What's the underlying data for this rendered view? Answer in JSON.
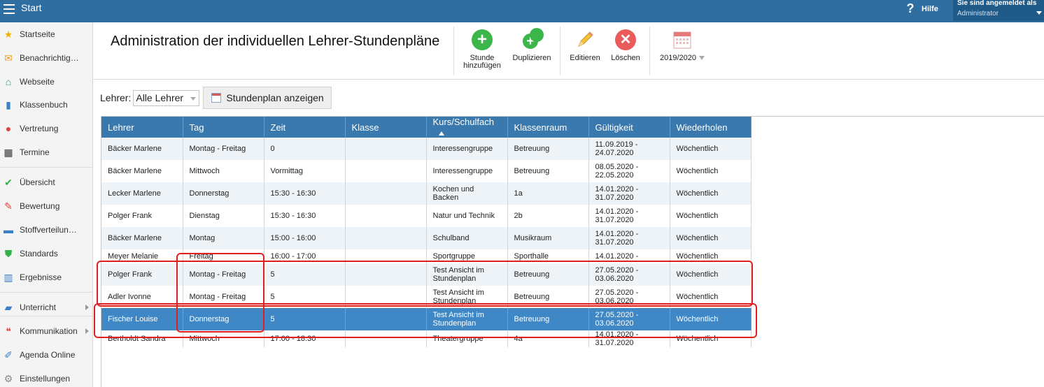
{
  "topbar": {
    "title": "Start",
    "help_label": "Hilfe",
    "user_line1": "Sie sind angemeldet als",
    "user_line2": "Administrator"
  },
  "sidebar": {
    "items": [
      {
        "label": "Startseite",
        "icon": "star-icon",
        "color": "#f0b400"
      },
      {
        "label": "Benachrichtigungen",
        "icon": "envelope-icon",
        "color": "#f29a1d"
      },
      {
        "label": "Webseite",
        "icon": "house-icon",
        "color": "#2e9a63"
      },
      {
        "label": "Klassenbuch",
        "icon": "book-icon",
        "color": "#3b7fc4"
      },
      {
        "label": "Vertretung",
        "icon": "person-icon",
        "color": "#e0453a"
      },
      {
        "label": "Termine",
        "icon": "calendar-icon",
        "color": "#333333"
      },
      {
        "label": "Übersicht",
        "icon": "check-circle-icon",
        "color": "#31b24a"
      },
      {
        "label": "Bewertung",
        "icon": "rating-icon",
        "color": "#e0453a"
      },
      {
        "label": "Stoffverteilungsplan",
        "icon": "briefcase-icon",
        "color": "#3b7fc4"
      },
      {
        "label": "Standards",
        "icon": "shield-check-icon",
        "color": "#31b24a"
      },
      {
        "label": "Ergebnisse",
        "icon": "bar-chart-icon",
        "color": "#3b7fc4"
      },
      {
        "label": "Unterricht",
        "icon": "open-book-icon",
        "color": "#3b7fc4"
      },
      {
        "label": "Kommunikation",
        "icon": "chat-icon",
        "color": "#e0453a"
      },
      {
        "label": "Agenda Online",
        "icon": "pen-icon",
        "color": "#3b7fc4"
      },
      {
        "label": "Einstellungen",
        "icon": "gear-icon",
        "color": "#888888"
      }
    ]
  },
  "header": {
    "title": "Administration der individuellen Lehrer-Stundenpläne",
    "toolbar": {
      "add_line1": "Stunde",
      "add_line2": "hinzufügen",
      "duplicate": "Duplizieren",
      "edit": "Editieren",
      "delete": "Löschen",
      "year": "2019/2020"
    }
  },
  "filter": {
    "label": "Lehrer:",
    "selected": "Alle Lehrer",
    "show_button": "Stundenplan anzeigen"
  },
  "table": {
    "columns": [
      "Lehrer",
      "Tag",
      "Zeit",
      "Klasse",
      "Kurs/Schulfach",
      "Klassenraum",
      "Gültigkeit",
      "Wiederholen"
    ],
    "rows": [
      {
        "lehrer": "Bäcker Marlene",
        "tag": "Montag - Freitag",
        "zeit": "0",
        "klasse": "",
        "kurs": "Interessengruppe",
        "raum": "Betreuung",
        "gueltig_von": "11.09.2019 -",
        "gueltig_bis": "24.07.2020",
        "wiederholen": "Wöchentlich"
      },
      {
        "lehrer": "Bäcker Marlene",
        "tag": "Mittwoch",
        "zeit": "Vormittag",
        "klasse": "",
        "kurs": "Interessengruppe",
        "raum": "Betreuung",
        "gueltig_von": "08.05.2020 -",
        "gueltig_bis": "22.05.2020",
        "wiederholen": "Wöchentlich"
      },
      {
        "lehrer": "Lecker Marlene",
        "tag": "Donnerstag",
        "zeit": "15:30 - 16:30",
        "klasse": "",
        "kurs": "Kochen und Backen",
        "raum": "1a",
        "gueltig_von": "14.01.2020 -",
        "gueltig_bis": "31.07.2020",
        "wiederholen": "Wöchentlich"
      },
      {
        "lehrer": "Polger Frank",
        "tag": "Dienstag",
        "zeit": "15:30 - 16:30",
        "klasse": "",
        "kurs": "Natur und Technik",
        "raum": "2b",
        "gueltig_von": "14.01.2020 -",
        "gueltig_bis": "31.07.2020",
        "wiederholen": "Wöchentlich"
      },
      {
        "lehrer": "Bäcker Marlene",
        "tag": "Montag",
        "zeit": "15:00 - 16:00",
        "klasse": "",
        "kurs": "Schulband",
        "raum": "Musikraum",
        "gueltig_von": "14.01.2020 -",
        "gueltig_bis": "31.07.2020",
        "wiederholen": "Wöchentlich"
      },
      {
        "lehrer": "Meyer Melanie",
        "tag": "Freitag",
        "zeit": "16:00 - 17:00",
        "klasse": "",
        "kurs": "Sportgruppe",
        "raum": "Sporthalle",
        "gueltig_von": "14.01.2020 -",
        "gueltig_bis": "",
        "wiederholen": "Wöchentlich"
      },
      {
        "lehrer": "Polger Frank",
        "tag": "Montag - Freitag",
        "zeit": "5",
        "klasse": "",
        "kurs": "Test Ansicht im Stundenplan",
        "raum": "Betreuung",
        "gueltig_von": "27.05.2020 -",
        "gueltig_bis": "03.06.2020",
        "wiederholen": "Wöchentlich"
      },
      {
        "lehrer": "Adler Ivonne",
        "tag": "Montag - Freitag",
        "zeit": "5",
        "klasse": "",
        "kurs": "Test Ansicht im Stundenplan",
        "raum": "Betreuung",
        "gueltig_von": "27.05.2020 -",
        "gueltig_bis": "03.06.2020",
        "wiederholen": "Wöchentlich"
      },
      {
        "lehrer": "Fischer Louise",
        "tag": "Donnerstag",
        "zeit": "5",
        "klasse": "",
        "kurs": "Test Ansicht im Stundenplan",
        "raum": "Betreuung",
        "gueltig_von": "27.05.2020 -",
        "gueltig_bis": "03.06.2020",
        "wiederholen": "Wöchentlich"
      },
      {
        "lehrer": "Bertholdt Sandra",
        "tag": "Mittwoch",
        "zeit": "17:00 - 18:30",
        "klasse": "",
        "kurs": "Theatergruppe",
        "raum": "4a",
        "gueltig_von": "14.01.2020 -",
        "gueltig_bis": "31.07.2020",
        "wiederholen": "Wöchentlich"
      }
    ]
  },
  "colors": {
    "topbar": "#2f6ea1",
    "header_row": "#3a79ad",
    "selected_row": "#3f88c5",
    "highlight": "#e02020"
  }
}
